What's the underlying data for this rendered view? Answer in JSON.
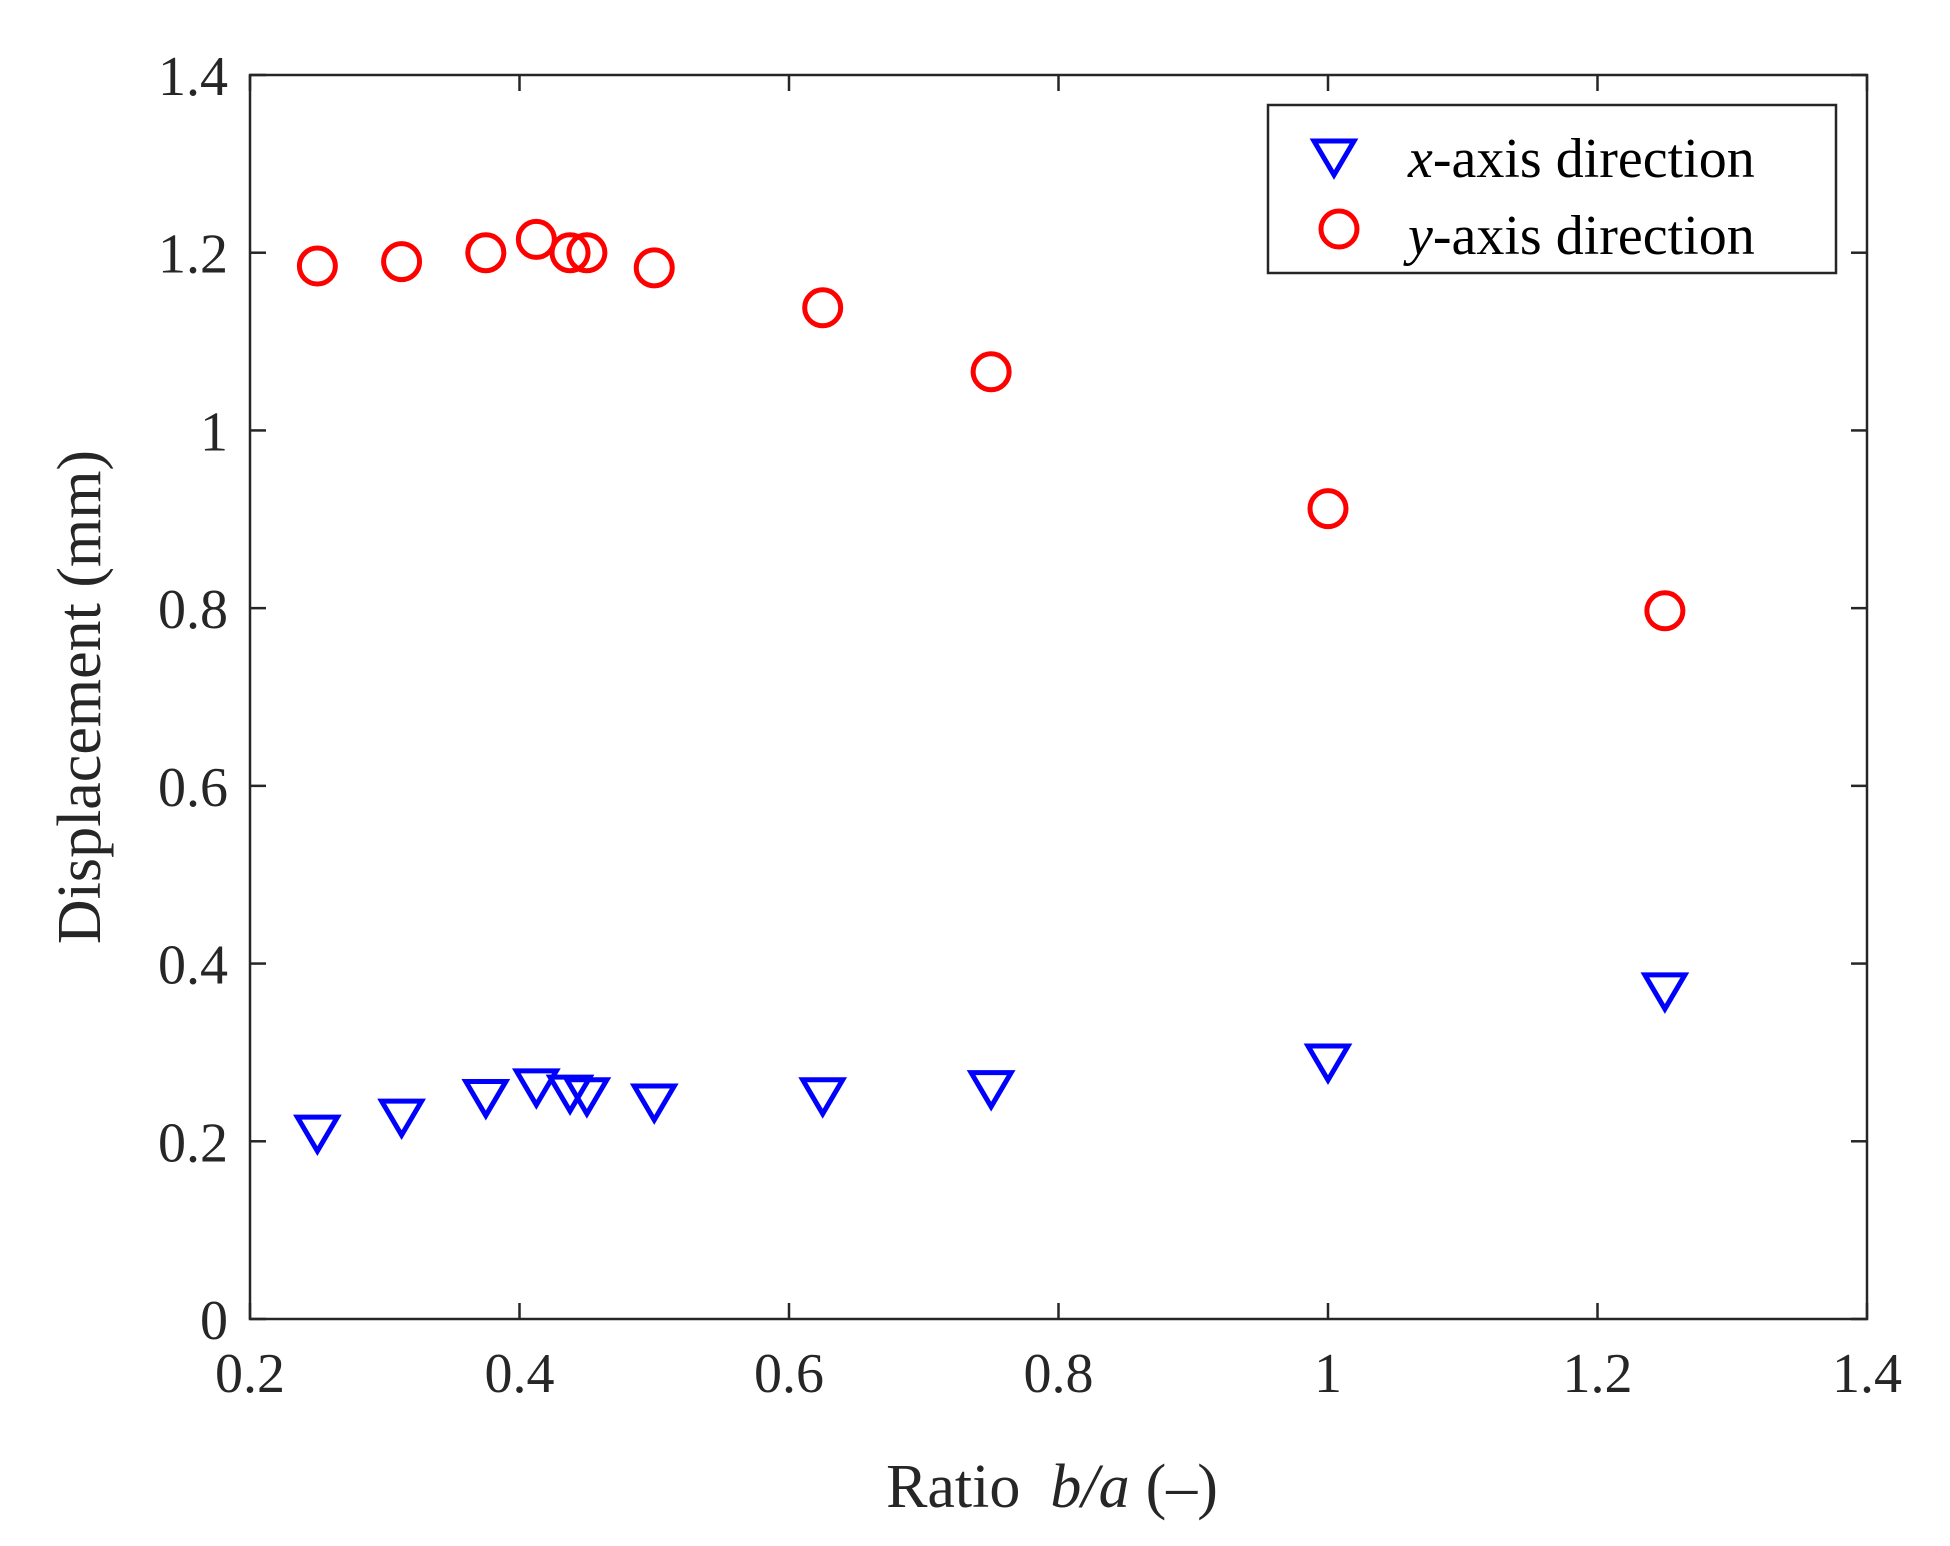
{
  "chart_data": {
    "type": "scatter",
    "xlabel": {
      "prefix": "Ratio",
      "italic": "b/a",
      "suffix": "(–)"
    },
    "ylabel": "Displacement (mm)",
    "xlim": [
      0.2,
      1.4
    ],
    "ylim": [
      0,
      1.4
    ],
    "xticks": [
      0.2,
      0.4,
      0.6,
      0.8,
      1.0,
      1.2,
      1.4
    ],
    "xtick_labels": [
      "0.2",
      "0.4",
      "0.6",
      "0.8",
      "1",
      "1.2",
      "1.4"
    ],
    "yticks": [
      0,
      0.2,
      0.4,
      0.6,
      0.8,
      1.0,
      1.2,
      1.4
    ],
    "ytick_labels": [
      "0",
      "0.2",
      "0.4",
      "0.6",
      "0.8",
      "1",
      "1.2",
      "1.4"
    ],
    "grid": false,
    "legend_position": "top-right",
    "series": [
      {
        "name": "x-axis direction",
        "legend_italic": "x",
        "legend_rest": "-axis direction",
        "marker": "triangle-down",
        "color": "#0000ff",
        "x": [
          0.25,
          0.3125,
          0.375,
          0.4125,
          0.4375,
          0.45,
          0.5,
          0.625,
          0.75,
          1.0,
          1.25
        ],
        "y": [
          0.21,
          0.228,
          0.25,
          0.262,
          0.255,
          0.252,
          0.245,
          0.252,
          0.26,
          0.29,
          0.37
        ]
      },
      {
        "name": "y-axis direction",
        "legend_italic": "y",
        "legend_rest": "-axis direction",
        "marker": "circle",
        "color": "#ff0000",
        "x": [
          0.25,
          0.3125,
          0.375,
          0.4125,
          0.4375,
          0.45,
          0.5,
          0.625,
          0.75,
          1.0,
          1.25
        ],
        "y": [
          1.185,
          1.19,
          1.2,
          1.215,
          1.2,
          1.2,
          1.183,
          1.138,
          1.066,
          0.912,
          0.797
        ]
      }
    ]
  }
}
